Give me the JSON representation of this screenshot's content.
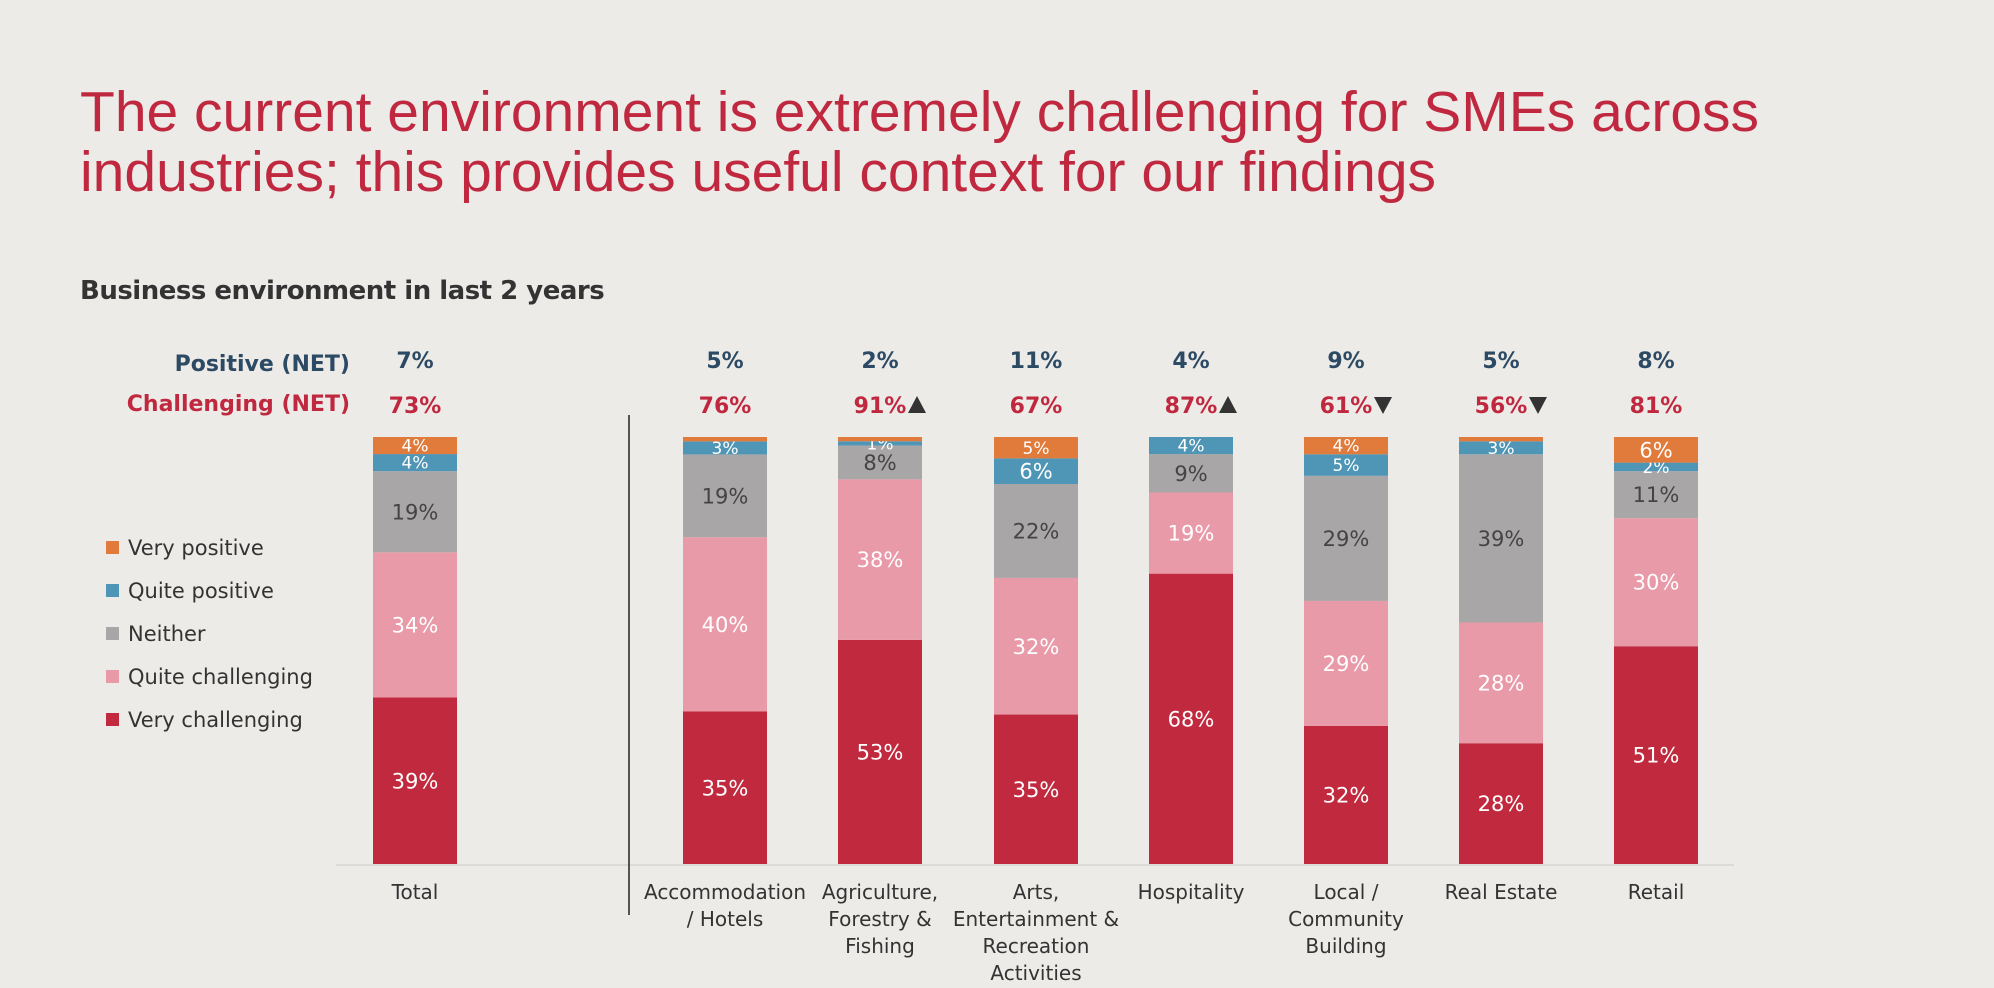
{
  "page": {
    "title": "The current environment is extremely challenging for SMEs across industries; this provides useful context for our findings",
    "subtitle": "Business environment in last 2 years",
    "net_positive_label": "Positive (NET)",
    "net_challenging_label": "Challenging (NET)"
  },
  "chart_data": {
    "type": "bar",
    "stacked": true,
    "title": "Business environment in last 2 years",
    "categories": [
      [
        "Total"
      ],
      [
        "Accommodation",
        "/ Hotels"
      ],
      [
        "Agriculture,",
        "Forestry &",
        "Fishing"
      ],
      [
        "Arts,",
        "Entertainment &",
        "Recreation",
        "Activities"
      ],
      [
        "Hospitality"
      ],
      [
        "Local /",
        "Community",
        "Building"
      ],
      [
        "Real Estate"
      ],
      [
        "Retail"
      ]
    ],
    "series": [
      {
        "name": "Very challenging",
        "color": "#c12a3e",
        "label_color": "#ffffff",
        "values": [
          39,
          35,
          53,
          35,
          68,
          32,
          28,
          51
        ]
      },
      {
        "name": "Quite challenging",
        "color": "#e99aa8",
        "label_color": "#ffffff",
        "values": [
          34,
          40,
          38,
          32,
          19,
          29,
          28,
          30
        ]
      },
      {
        "name": "Neither",
        "color": "#a8a6a6",
        "label_color": "#444444",
        "values": [
          19,
          19,
          8,
          22,
          9,
          29,
          39,
          11
        ]
      },
      {
        "name": "Quite positive",
        "color": "#4f95b6",
        "label_color": "#ffffff",
        "values": [
          4,
          3,
          1,
          6,
          4,
          5,
          3,
          2
        ]
      },
      {
        "name": "Very positive",
        "color": "#e07b3c",
        "label_color": "#ffffff",
        "values": [
          4,
          1,
          1,
          5,
          0,
          4,
          1,
          6
        ]
      }
    ],
    "data_labels": [
      [
        "39%",
        "34%",
        "19%",
        "4%",
        "4%"
      ],
      [
        "35%",
        "40%",
        "19%",
        "3%",
        ""
      ],
      [
        "53%",
        "38%",
        "8%",
        "1%",
        ""
      ],
      [
        "35%",
        "32%",
        "22%",
        "6%",
        "5%"
      ],
      [
        "68%",
        "19%",
        "9%",
        "4%",
        ""
      ],
      [
        "32%",
        "29%",
        "29%",
        "5%",
        "4%"
      ],
      [
        "28%",
        "28%",
        "39%",
        "3%",
        ""
      ],
      [
        "51%",
        "30%",
        "11%",
        "2%",
        "6%"
      ]
    ],
    "net_positive": [
      "7%",
      "5%",
      "2%",
      "11%",
      "4%",
      "9%",
      "5%",
      "8%"
    ],
    "net_challenging": [
      "73%",
      "76%",
      "91%",
      "67%",
      "87%",
      "61%",
      "56%",
      "81%"
    ],
    "significance": [
      "",
      "",
      "up",
      "",
      "up",
      "down",
      "down",
      ""
    ],
    "legend_order": [
      "Very positive",
      "Quite positive",
      "Neither",
      "Quite challenging",
      "Very challenging"
    ],
    "colors": {
      "net_positive": "#2c4a63",
      "net_challenging": "#c0283f",
      "significance": "#333333"
    },
    "legend_position": "left"
  }
}
